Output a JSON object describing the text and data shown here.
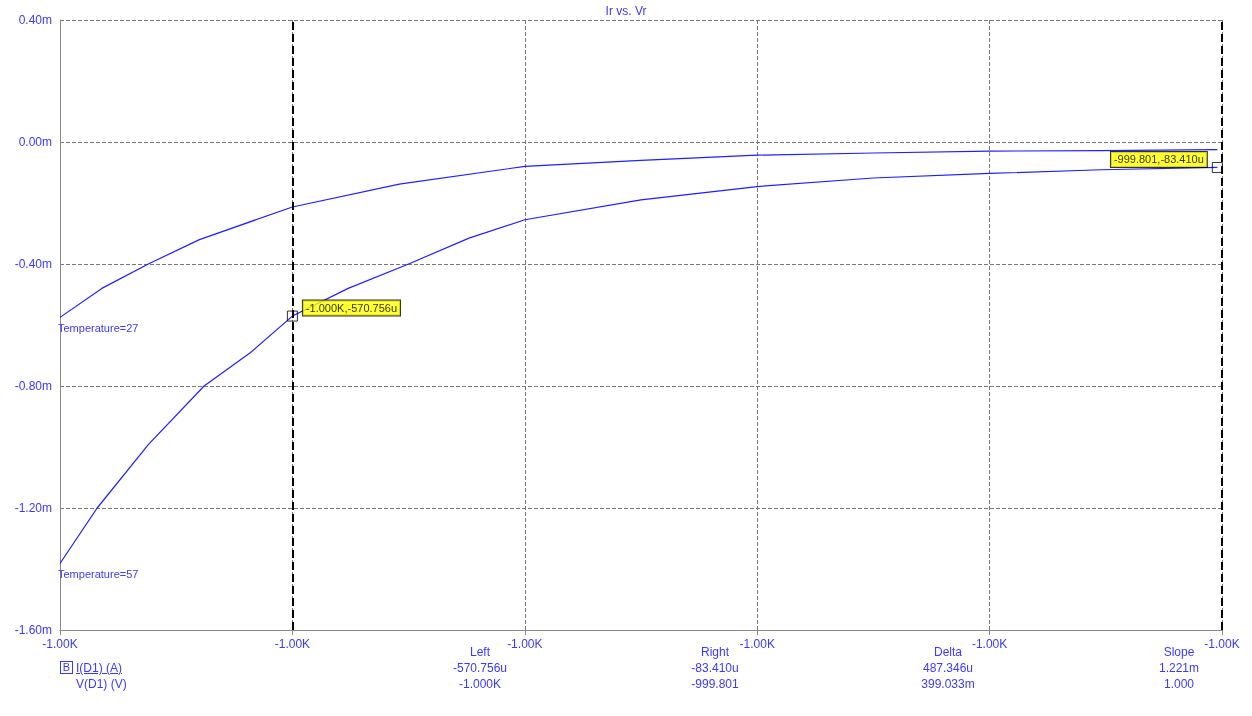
{
  "chart_data": {
    "type": "line",
    "title": "Ir vs. Vr",
    "xlim": [
      -1000.05,
      -999.8
    ],
    "xticks": [
      {
        "value": -1000.05,
        "label": "-1.00K"
      },
      {
        "value": -1000.0,
        "label": "-1.00K"
      },
      {
        "value": -999.95,
        "label": "-1.00K"
      },
      {
        "value": -999.9,
        "label": "-1.00K"
      },
      {
        "value": -999.85,
        "label": "-1.00K"
      },
      {
        "value": -999.8,
        "label": "-1.00K"
      }
    ],
    "ylim": [
      -1.6,
      0.4
    ],
    "yticks": [
      {
        "value": -1.6,
        "label": "-1.60m"
      },
      {
        "value": -1.2,
        "label": "-1.20m"
      },
      {
        "value": -0.8,
        "label": "-0.80m"
      },
      {
        "value": -0.4,
        "label": "-0.40m"
      },
      {
        "value": 0,
        "label": "0.00m"
      },
      {
        "value": 0.4,
        "label": "0.40m"
      }
    ],
    "grid": true,
    "legend": false,
    "marker": "none",
    "line_style": "solid",
    "series": [
      {
        "name": "Temperature=27",
        "color": "#1f1fff",
        "x": [
          -1000.05,
          -1000.041,
          -1000.031,
          -1000.02,
          -1000.0,
          -999.977,
          -999.95,
          -999.925,
          -999.9,
          -999.875,
          -999.85,
          -999.826,
          -999.801
        ],
        "values": [
          -0.575,
          -0.48,
          -0.4,
          -0.32,
          -0.213,
          -0.138,
          -0.08,
          -0.06,
          -0.043,
          -0.036,
          -0.03,
          -0.028,
          -0.025
        ]
      },
      {
        "name": "Temperature=57",
        "color": "#1f1fff",
        "x": [
          -1000.05,
          -1000.042,
          -1000.031,
          -1000.019,
          -1000.009,
          -1000.0,
          -999.988,
          -999.975,
          -999.962,
          -999.95,
          -999.925,
          -999.9,
          -999.875,
          -999.85,
          -999.826,
          -999.801
        ],
        "values": [
          -1.382,
          -1.2,
          -0.992,
          -0.8,
          -0.69,
          -0.570756,
          -0.48,
          -0.4,
          -0.315,
          -0.255,
          -0.19,
          -0.146,
          -0.118,
          -0.103,
          -0.091,
          -0.08341
        ]
      }
    ],
    "ref_lines": [
      {
        "axis": "x",
        "value": -1000.0,
        "color": "#000000",
        "line_style": "dashed"
      },
      {
        "axis": "x",
        "value": -999.801,
        "color": "#000000",
        "line_style": "dashed"
      }
    ],
    "annotations": [
      {
        "text": "-1.000K,-570.756u",
        "x": -1000.0,
        "y": -0.570756
      },
      {
        "text": "-999.801,-83.410u",
        "x": -999.801,
        "y": -0.08341
      },
      "Left",
      "Right",
      "Delta",
      "Slope",
      "B",
      "I(D1) (A)",
      "-570.756u",
      "-83.410u",
      "487.346u",
      "1.221m",
      "V(D1) (V)",
      "-1.000K",
      "-999.801",
      "399.033m",
      "1.000"
    ]
  }
}
